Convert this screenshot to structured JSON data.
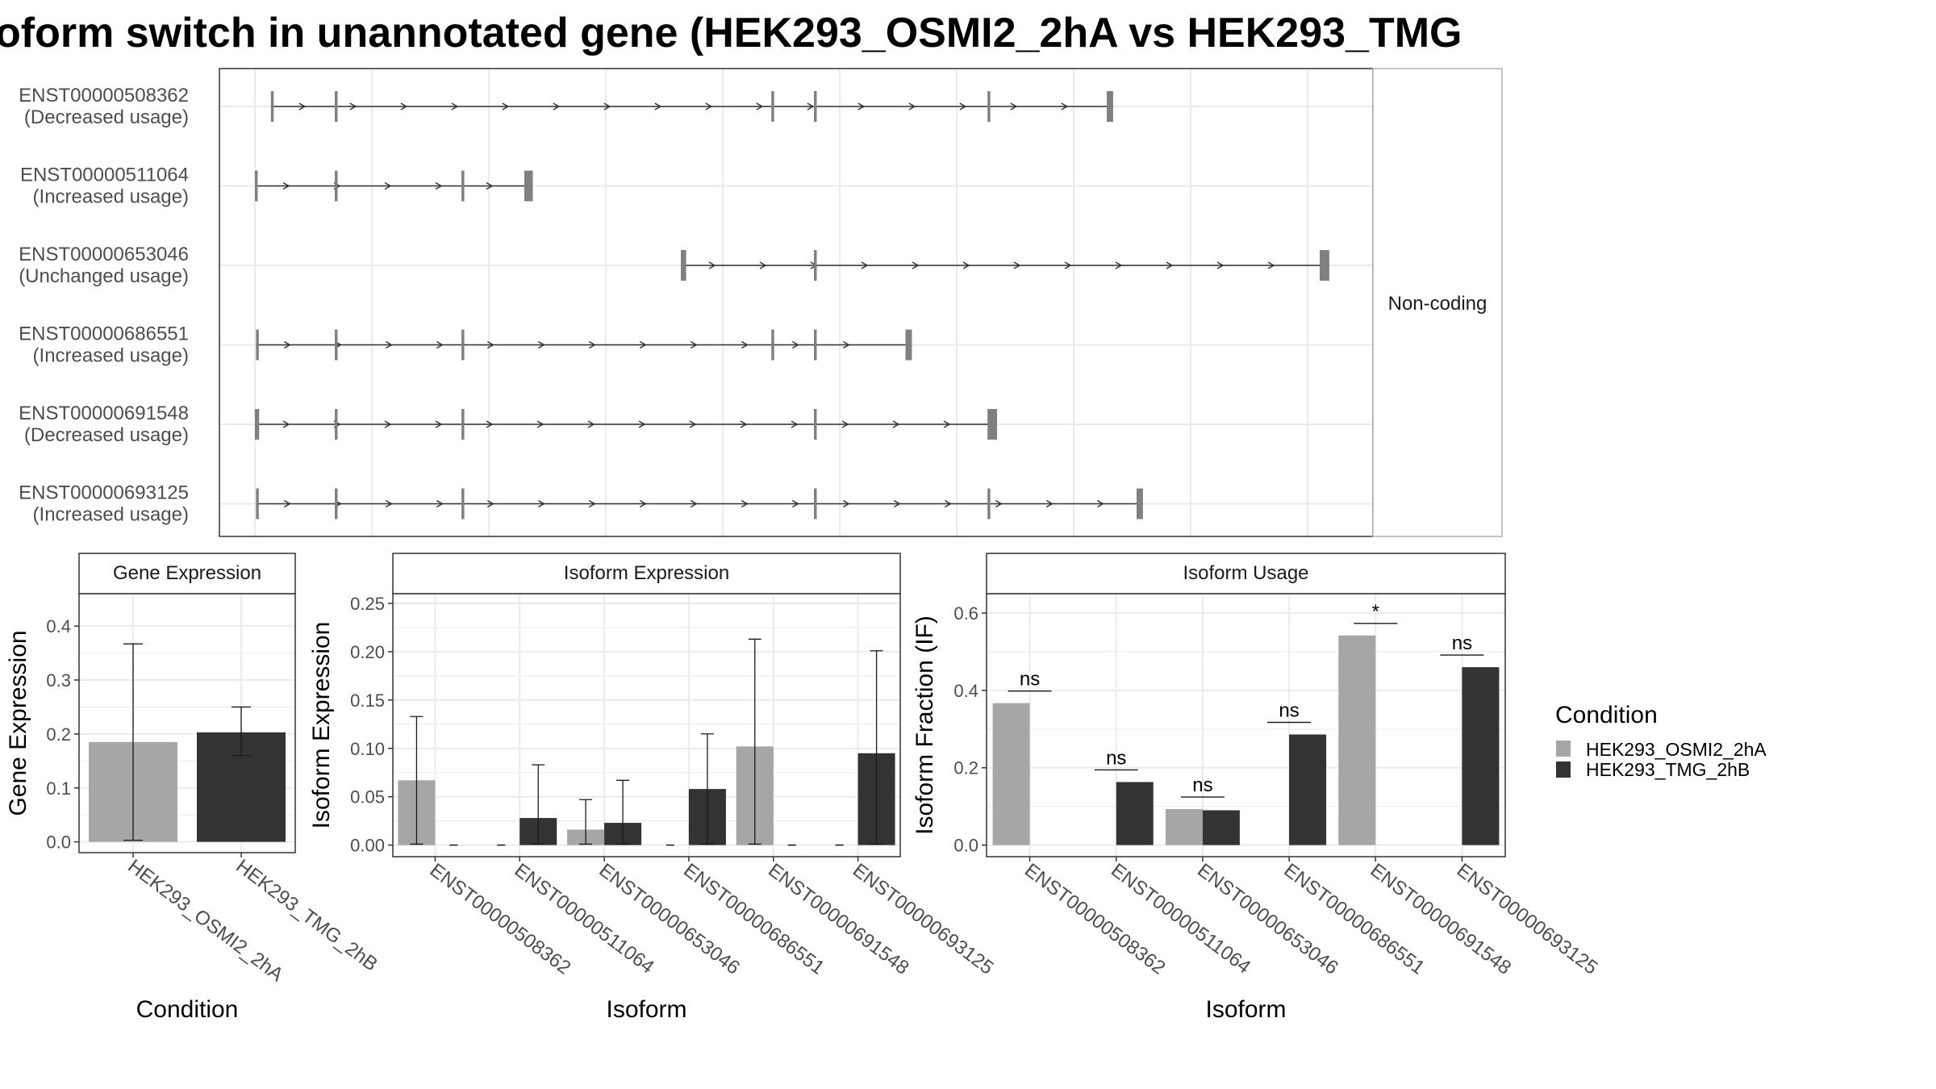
{
  "title": "oform switch in unannotated gene (HEK293_OSMI2_2hA vs HEK293_TMG",
  "colors": {
    "light": "#a6a6a6",
    "dark": "#333333",
    "exon": "#808080",
    "grid": "#ebebeb",
    "strip_bg": "#ffffff",
    "panel_border": "#333333",
    "text": "#1a1a1a",
    "axis_text": "#4d4d4d"
  },
  "chart_data": [
    {
      "type": "diagram",
      "name": "transcript-structure",
      "strip_label": "Non-coding",
      "transcripts": [
        {
          "id": "ENST00000508362",
          "usage": "(Decreased usage)",
          "exons": [
            [
              0.015,
              0.017
            ],
            [
              0.075,
              0.077
            ],
            [
              0.485,
              0.487
            ],
            [
              0.525,
              0.527
            ],
            [
              0.688,
              0.69
            ],
            [
              0.8,
              0.806
            ]
          ]
        },
        {
          "id": "ENST00000511064",
          "usage": "(Increased usage)",
          "exons": [
            [
              0.0,
              0.002
            ],
            [
              0.075,
              0.077
            ],
            [
              0.194,
              0.196
            ],
            [
              0.253,
              0.261
            ]
          ]
        },
        {
          "id": "ENST00000653046",
          "usage": "(Unchanged usage)",
          "exons": [
            [
              0.4,
              0.405
            ],
            [
              0.525,
              0.527
            ],
            [
              1.0,
              1.009
            ]
          ]
        },
        {
          "id": "ENST00000686551",
          "usage": "(Increased usage)",
          "exons": [
            [
              0.001,
              0.003
            ],
            [
              0.075,
              0.077
            ],
            [
              0.194,
              0.196
            ],
            [
              0.485,
              0.487
            ],
            [
              0.525,
              0.527
            ],
            [
              0.611,
              0.617
            ]
          ]
        },
        {
          "id": "ENST00000691548",
          "usage": "(Decreased usage)",
          "exons": [
            [
              0.0,
              0.004
            ],
            [
              0.075,
              0.077
            ],
            [
              0.194,
              0.196
            ],
            [
              0.525,
              0.527
            ],
            [
              0.688,
              0.697
            ]
          ]
        },
        {
          "id": "ENST00000693125",
          "usage": "(Increased usage)",
          "exons": [
            [
              0.001,
              0.003
            ],
            [
              0.075,
              0.077
            ],
            [
              0.194,
              0.196
            ],
            [
              0.525,
              0.527
            ],
            [
              0.688,
              0.69
            ],
            [
              0.828,
              0.834
            ]
          ]
        }
      ]
    },
    {
      "type": "bar",
      "name": "gene-expression",
      "strip_label": "Gene Expression",
      "xlabel": "Condition",
      "ylabel": "Gene Expression",
      "ylim": [
        -0.02,
        0.46
      ],
      "yticks": [
        "0.0",
        "0.1",
        "0.2",
        "0.3",
        "0.4"
      ],
      "ytick_values": [
        0,
        0.1,
        0.2,
        0.3,
        0.4
      ],
      "categories": [
        "HEK293_OSMI2_2hA",
        "HEK293_TMG_2hB"
      ],
      "values": [
        0.185,
        0.203
      ],
      "err_low": [
        0.003,
        0.16
      ],
      "err_high": [
        0.367,
        0.25
      ]
    },
    {
      "type": "bar",
      "name": "isoform-expression",
      "strip_label": "Isoform Expression",
      "xlabel": "Isoform",
      "ylabel": "Isoform Expression",
      "ylim": [
        -0.012,
        0.26
      ],
      "yticks": [
        "0.00",
        "0.05",
        "0.10",
        "0.15",
        "0.20",
        "0.25"
      ],
      "ytick_values": [
        0,
        0.05,
        0.1,
        0.15,
        0.2,
        0.25
      ],
      "categories": [
        "ENST00000508362",
        "ENST00000511064",
        "ENST00000653046",
        "ENST00000686551",
        "ENST00000691548",
        "ENST00000693125"
      ],
      "series": [
        {
          "name": "HEK293_OSMI2_2hA",
          "values": [
            0.067,
            0,
            0.016,
            0,
            0.102,
            0
          ],
          "err_low": [
            0.001,
            0,
            0.001,
            0,
            0.001,
            0
          ],
          "err_high": [
            0.133,
            0,
            0.047,
            0,
            0.213,
            0
          ]
        },
        {
          "name": "HEK293_TMG_2hB",
          "values": [
            0,
            0.028,
            0.023,
            0.058,
            0,
            0.095
          ],
          "err_low": [
            0,
            0.001,
            0.001,
            0.001,
            0,
            0.001
          ],
          "err_high": [
            0,
            0.083,
            0.067,
            0.115,
            0,
            0.201
          ]
        }
      ]
    },
    {
      "type": "bar",
      "name": "isoform-usage",
      "strip_label": "Isoform Usage",
      "xlabel": "Isoform",
      "ylabel": "Isoform Fraction (IF)",
      "ylim": [
        -0.03,
        0.65
      ],
      "yticks": [
        "0.0",
        "0.2",
        "0.4",
        "0.6"
      ],
      "ytick_values": [
        0,
        0.2,
        0.4,
        0.6
      ],
      "categories": [
        "ENST00000508362",
        "ENST00000511064",
        "ENST00000653046",
        "ENST00000686551",
        "ENST00000691548",
        "ENST00000693125"
      ],
      "series": [
        {
          "name": "HEK293_OSMI2_2hA",
          "values": [
            0.367,
            0,
            0.093,
            0,
            0.542,
            0
          ]
        },
        {
          "name": "HEK293_TMG_2hB",
          "values": [
            0,
            0.163,
            0.09,
            0.286,
            0,
            0.46
          ]
        }
      ],
      "significance": [
        "ns",
        "ns",
        "ns",
        "ns",
        "*",
        "ns"
      ]
    }
  ],
  "legend": {
    "title": "Condition",
    "items": [
      "HEK293_OSMI2_2hA",
      "HEK293_TMG_2hB"
    ]
  }
}
